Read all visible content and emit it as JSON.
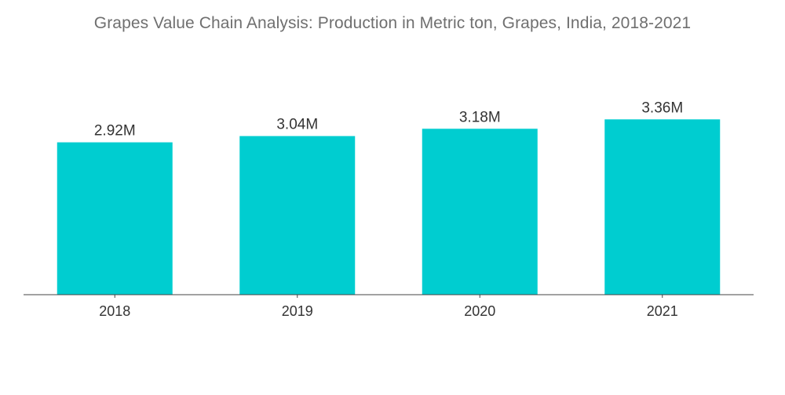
{
  "title": "Grapes Value Chain Analysis: Production in Metric ton, Grapes, India, 2018-2021",
  "colors": {
    "bar": "#00cdd0",
    "axis": "#444444"
  },
  "chart_data": {
    "type": "bar",
    "title": "Grapes Value Chain Analysis: Production in Metric ton, Grapes, India, 2018-2021",
    "categories": [
      "2018",
      "2019",
      "2020",
      "2021"
    ],
    "values": [
      2920000,
      3040000,
      3180000,
      3360000
    ],
    "data_labels": [
      "2.92M",
      "3.04M",
      "3.18M",
      "3.36M"
    ],
    "xlabel": "",
    "ylabel": "",
    "ylim": [
      0,
      3650000
    ],
    "grid": false,
    "legend": "none"
  }
}
